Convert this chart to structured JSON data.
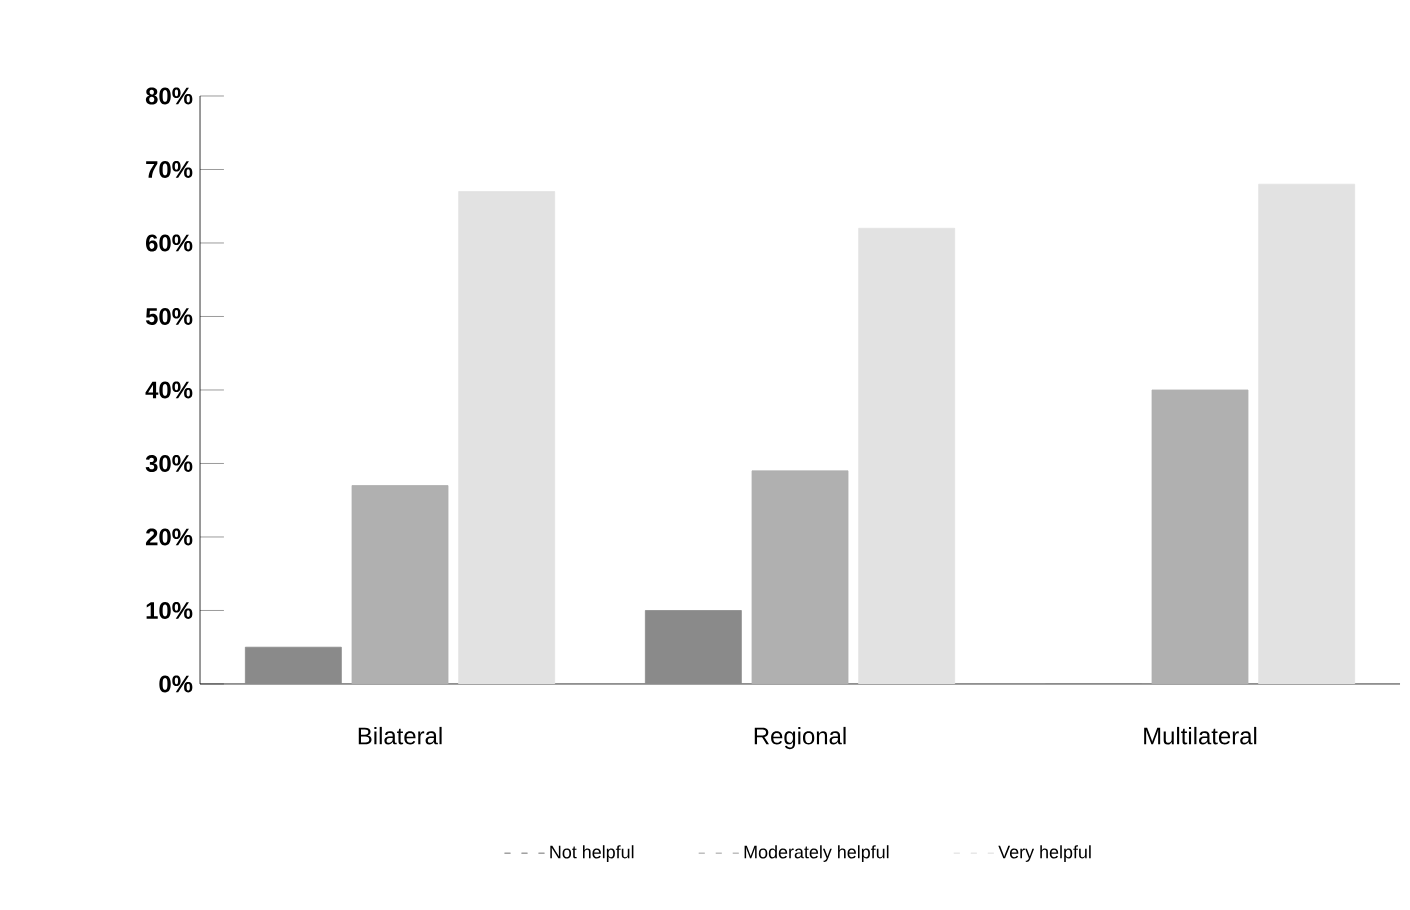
{
  "chart_data": {
    "type": "bar",
    "categories": [
      "Bilateral",
      "Regional",
      "Multilateral"
    ],
    "series": [
      {
        "name": "Not helpful",
        "color": "#8a8a8a",
        "values": [
          5,
          10,
          0
        ]
      },
      {
        "name": "Moderately helpful",
        "color": "#b0b0b0",
        "values": [
          27,
          29,
          40
        ]
      },
      {
        "name": "Very helpful",
        "color": "#e2e2e2",
        "values": [
          67,
          62,
          68
        ]
      }
    ],
    "ylim": [
      0,
      80
    ],
    "yticks": [
      {
        "value": 0,
        "label": "0%"
      },
      {
        "value": 10,
        "label": "10%"
      },
      {
        "value": 20,
        "label": "20%"
      },
      {
        "value": 30,
        "label": "30%"
      },
      {
        "value": 40,
        "label": "40%"
      },
      {
        "value": 50,
        "label": "50%"
      },
      {
        "value": 60,
        "label": "60%"
      },
      {
        "value": 70,
        "label": "70%"
      },
      {
        "value": 80,
        "label": "80%"
      }
    ],
    "grid": false,
    "legend": "bottom"
  }
}
